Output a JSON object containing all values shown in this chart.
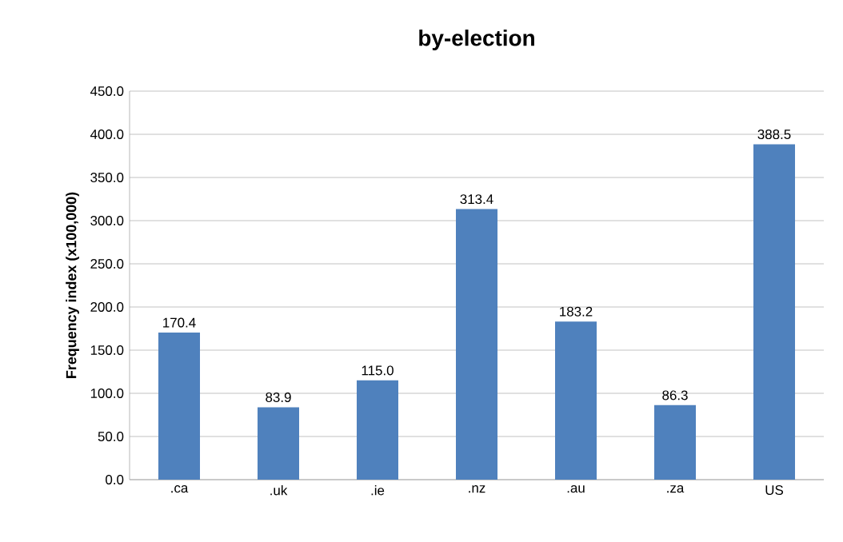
{
  "chart_data": {
    "type": "bar",
    "title": "by-election",
    "ylabel": "Frequency index (x100,000)",
    "categories": [
      ".ca",
      ".uk",
      ".ie",
      ".nz",
      ".au",
      ".za",
      "US"
    ],
    "values": [
      170.4,
      83.9,
      115.0,
      313.4,
      183.2,
      86.3,
      388.5
    ],
    "value_labels": [
      "170.4",
      "83.9",
      "115.0",
      "313.4",
      "183.2",
      "86.3",
      "388.5"
    ],
    "color": "#4f81bd",
    "grid": "y",
    "ylim": [
      0,
      450
    ],
    "yticks": [
      {
        "value": 0,
        "label": "0.0"
      },
      {
        "value": 50,
        "label": "50.0"
      },
      {
        "value": 100,
        "label": "100.0"
      },
      {
        "value": 150,
        "label": "150.0"
      },
      {
        "value": 200,
        "label": "200.0"
      },
      {
        "value": 250,
        "label": "250.0"
      },
      {
        "value": 300,
        "label": "300.0"
      },
      {
        "value": 350,
        "label": "350.0"
      },
      {
        "value": 400,
        "label": "400.0"
      },
      {
        "value": 450,
        "label": "450.0"
      }
    ]
  }
}
